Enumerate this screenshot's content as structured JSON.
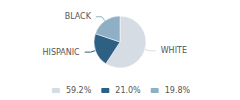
{
  "chart_data": {
    "type": "pie",
    "categories": [
      "WHITE",
      "HISPANIC",
      "BLACK"
    ],
    "values": [
      59.2,
      21.0,
      19.8
    ],
    "value_labels": [
      "59.2%",
      "21.0%",
      "19.8%"
    ],
    "colors": [
      "#d6dce4",
      "#2e6083",
      "#8fafc4"
    ],
    "legend": "bottom"
  }
}
